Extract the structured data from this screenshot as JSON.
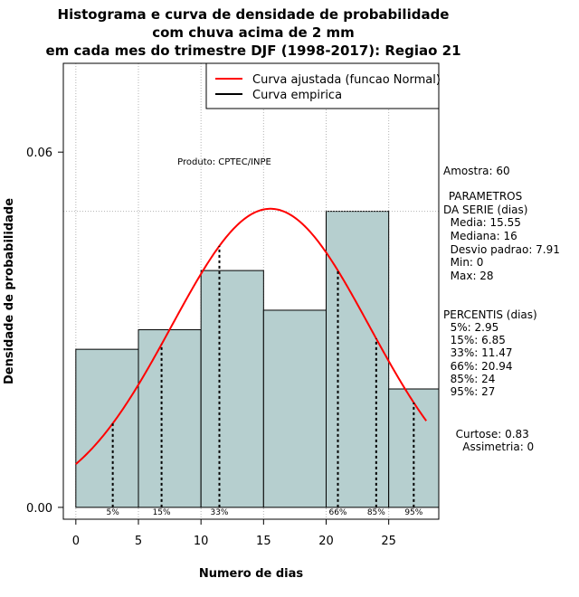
{
  "chart_data": {
    "type": "histogram",
    "title_lines": [
      "Histograma e curva de densidade de probabilidade",
      "com chuva acima de 2 mm",
      "em cada mes do trimestre DJF (1998-2017): Regiao 21"
    ],
    "xlabel": "Numero de dias",
    "ylabel": "Densidade de probabilidade",
    "xlim": [
      -1,
      29
    ],
    "ylim": [
      -0.002,
      0.075
    ],
    "x_ticks": [
      0,
      5,
      10,
      15,
      20,
      25
    ],
    "y_ticks": [
      0.0,
      0.06
    ],
    "y_tick_labels": [
      "0.00",
      "0.06"
    ],
    "x_gridlines": [
      0,
      5,
      10,
      15,
      20,
      25
    ],
    "bins": [
      {
        "x0": 0,
        "x1": 5,
        "density": 0.0267
      },
      {
        "x0": 5,
        "x1": 10,
        "density": 0.03
      },
      {
        "x0": 10,
        "x1": 15,
        "density": 0.04
      },
      {
        "x0": 15,
        "x1": 20,
        "density": 0.0333
      },
      {
        "x0": 20,
        "x1": 25,
        "density": 0.05
      },
      {
        "x0": 25,
        "x1": 29,
        "density": 0.02
      }
    ],
    "normal_fit": {
      "mean": 15.55,
      "sd": 7.91,
      "x_from": 0,
      "x_to": 28
    },
    "max_density_line": 0.05,
    "percentile_lines": [
      {
        "label": "5%",
        "x": 2.95
      },
      {
        "label": "15%",
        "x": 6.85
      },
      {
        "label": "33%",
        "x": 11.47
      },
      {
        "label": "66%",
        "x": 20.94
      },
      {
        "label": "85%",
        "x": 24
      },
      {
        "label": "95%",
        "x": 27
      }
    ],
    "legend": {
      "position": "top-right",
      "entries": [
        {
          "label": "Curva ajustada (funcao Normal)",
          "color": "#ff0000"
        },
        {
          "label": "Curva empirica",
          "color": "#000000"
        }
      ]
    },
    "annotation": "Produto: CPTEC/INPE",
    "colors": {
      "bar_fill": "#b6cfcf",
      "fit_line": "#ff0000",
      "grid": "#b3b3b3"
    }
  },
  "stats_panel": {
    "amostra": "Amostra: 60",
    "parametros_title": " PARAMETROS",
    "parametros_sub": "DA SERIE (dias)",
    "media": "  Media: 15.55",
    "mediana": "  Mediana: 16",
    "desvio": "  Desvio padrao: 7.91",
    "min": "  Min: 0",
    "max": "  Max: 28",
    "percentis_title": "PERCENTIS (dias)",
    "p5": "  5%: 2.95",
    "p15": "  15%: 6.85",
    "p33": "  33%: 11.47",
    "p66": "  66%: 20.94",
    "p85": "  85%: 24",
    "p95": "  95%: 27",
    "curtose": "  Curtose: 0.83",
    "assimetria": "    Assimetria: 0"
  }
}
